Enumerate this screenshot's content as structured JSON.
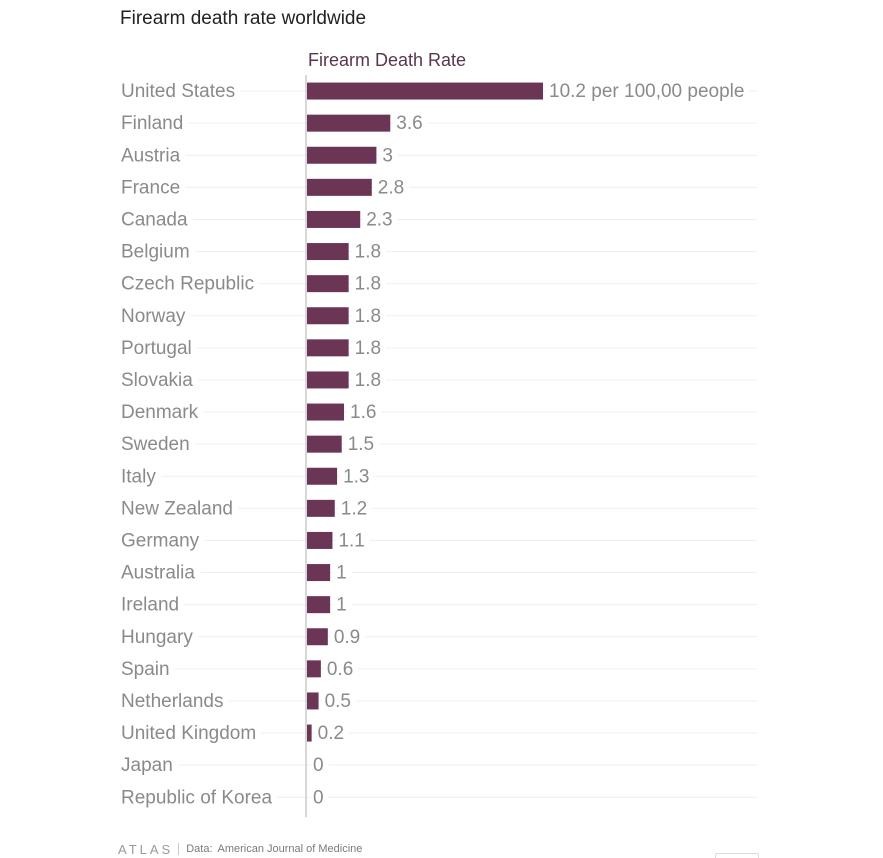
{
  "page": {
    "title": "Firearm death rate worldwide"
  },
  "chart_data": {
    "type": "bar",
    "orientation": "horizontal",
    "title": "Firearm death rate worldwide",
    "series_title": "Firearm Death Rate",
    "unit_label": "per 100,00 people",
    "bar_color": "#6b3555",
    "grid": true,
    "categories": [
      "United States",
      "Finland",
      "Austria",
      "France",
      "Canada",
      "Belgium",
      "Czech Republic",
      "Norway",
      "Portugal",
      "Slovakia",
      "Denmark",
      "Sweden",
      "Italy",
      "New Zealand",
      "Germany",
      "Australia",
      "Ireland",
      "Hungary",
      "Spain",
      "Netherlands",
      "United Kingdom",
      "Japan",
      "Republic of Korea"
    ],
    "values": [
      10.2,
      3.6,
      3,
      2.8,
      2.3,
      1.8,
      1.8,
      1.8,
      1.8,
      1.8,
      1.6,
      1.5,
      1.3,
      1.2,
      1.1,
      1,
      1,
      0.9,
      0.6,
      0.5,
      0.2,
      0,
      0
    ],
    "xlim": [
      0,
      10.2
    ]
  },
  "footer": {
    "brand": "ATLAS",
    "data_label": "Data:",
    "source": "American Journal of Medicine"
  }
}
